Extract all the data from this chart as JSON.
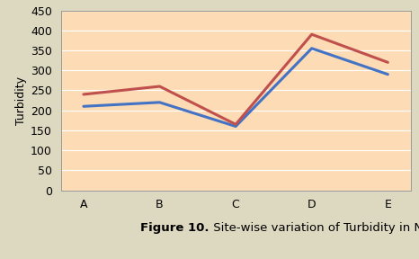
{
  "categories": [
    "A",
    "B",
    "C",
    "D",
    "E"
  ],
  "series1_values": [
    210,
    220,
    160,
    355,
    290
  ],
  "series2_values": [
    240,
    260,
    165,
    390,
    320
  ],
  "series1_color": "#4472C4",
  "series2_color": "#C0504D",
  "ylabel": "Turbidity",
  "ylim": [
    0,
    450
  ],
  "yticks": [
    0,
    50,
    100,
    150,
    200,
    250,
    300,
    350,
    400,
    450
  ],
  "plot_bg_color": "#FDDBB4",
  "outer_bg_color": "#DDD8C0",
  "line_width": 2.2,
  "caption_bold": "Figure 10.",
  "caption_normal": " Site-wise variation of Turbidity in NTU.",
  "caption_fontsize": 9.5,
  "tick_fontsize": 9,
  "ylabel_fontsize": 9
}
